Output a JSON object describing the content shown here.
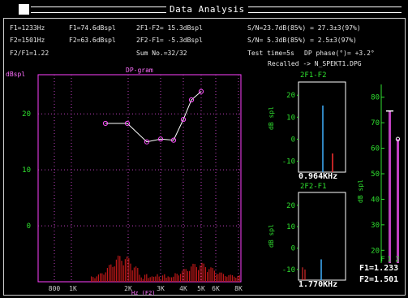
{
  "window": {
    "title": "Data Analysis"
  },
  "params": {
    "f1": "F1=1233Hz",
    "l1": "F1=74.6dBspl",
    "f1f2": "2F1-F2= 15.3dBspl",
    "sn_left": "S/N=23.7dB(85%) = 27.3±3(97%)",
    "f2": "F2=1501Hz",
    "l2": "F2=63.6dBspl",
    "f2f1": "2F2-F1= -5.3dBspl",
    "sn_right": "S/N= 5.3dB(85%) = 2.5±3(97%)",
    "ratio": "F2/F1=1.22",
    "sum": "Sum No.=32/32",
    "test_time": "Test time=5s",
    "dp_phase": "DP phase(°)= +3.2°",
    "recalled": "Recalled -> N_SPEKT1.DPG"
  },
  "dpgram": {
    "title": "DP-gram",
    "unit": "dBspl",
    "xlabel": "Hz (F2)",
    "yticks": [
      "20",
      "10",
      "0"
    ],
    "xticks": [
      "800",
      "1K",
      "2K",
      "3K",
      "4K",
      "5K",
      "6K",
      "8K"
    ]
  },
  "spec1": {
    "title": "2F1-F2",
    "ylabel": "dB spl",
    "yticks": [
      "20",
      "10",
      "0",
      "-10"
    ],
    "freq": "0.964KHz"
  },
  "spec2": {
    "title": "2F2-F1",
    "ylabel": "dB spl",
    "yticks": [
      "20",
      "10",
      "0",
      "-10"
    ],
    "freq": "1.770KHz"
  },
  "level": {
    "ylabel": "dB spl",
    "yticks": [
      "80",
      "70",
      "60",
      "50",
      "40",
      "30",
      "20"
    ],
    "bar_labels": [
      "F",
      "1",
      "2"
    ],
    "f1_freq": "F1=1.233",
    "f2_freq": "F2=1.501",
    "f1_level": 74.6,
    "f2_level": 63.6
  },
  "chart_data": [
    {
      "type": "line",
      "title": "DP-gram",
      "ylabel": "dBspl",
      "xlabel": "Hz (F2)",
      "ylim": [
        -10,
        27
      ],
      "series": [
        {
          "values": [
            18.3,
            18.3,
            15.0,
            15.5,
            15.3,
            19.0,
            22.5,
            24.0
          ]
        }
      ]
    },
    {
      "type": "bar",
      "title": "2F1-F2",
      "ylabel": "dB spl",
      "ylim": [
        -15,
        26
      ],
      "values": [
        15.3,
        -6.5
      ]
    },
    {
      "type": "bar",
      "title": "2F2-F1",
      "ylabel": "dB spl",
      "ylim": [
        -15,
        26
      ],
      "values": [
        -5.3,
        -9.0,
        -10.0
      ]
    },
    {
      "type": "bar",
      "ylabel": "dB spl",
      "ylim": [
        15,
        85
      ],
      "categories": [
        "1",
        "2"
      ],
      "values": [
        74.6,
        63.6
      ]
    }
  ]
}
